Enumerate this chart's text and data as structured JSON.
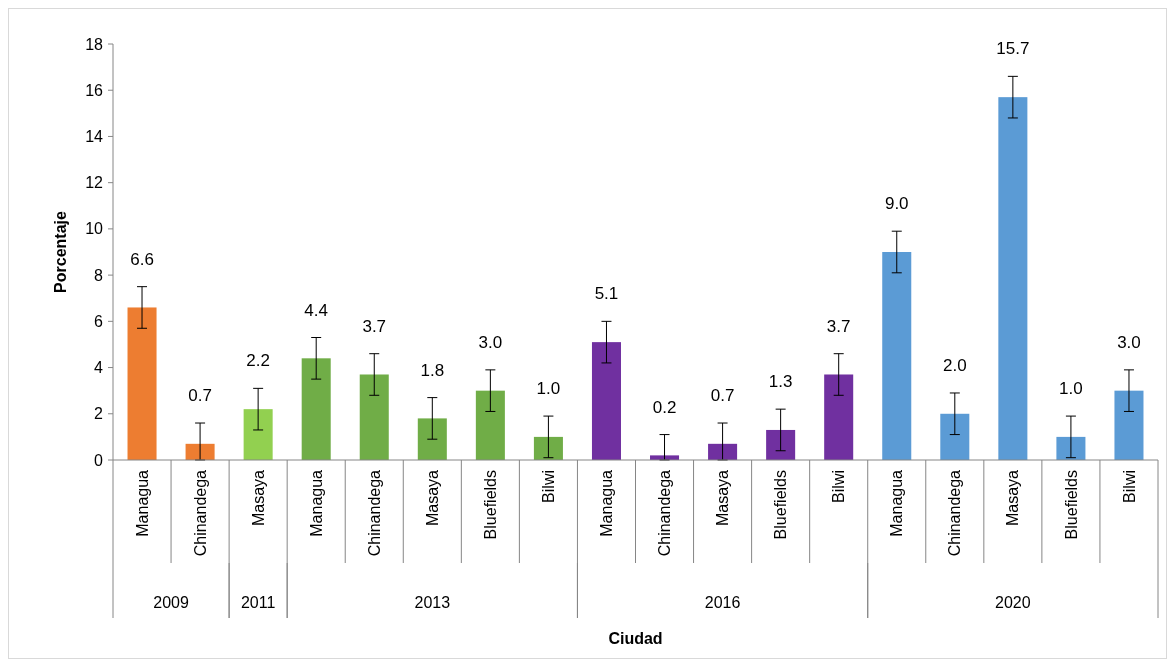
{
  "chart_data": {
    "type": "bar",
    "xlabel": "Ciudad",
    "ylabel": "Porcentaje",
    "categories": [
      "Managua",
      "Chinandega",
      "Masaya",
      "Managua",
      "Chinandega",
      "Masaya",
      "Bluefields",
      "Bilwi",
      "Managua",
      "Chinandega",
      "Masaya",
      "Bluefields",
      "Bilwi",
      "Managua",
      "Chinandega",
      "Masaya",
      "Bluefields",
      "Bilwi"
    ],
    "values": [
      6.6,
      0.7,
      2.2,
      4.4,
      3.7,
      1.8,
      3.0,
      1.0,
      5.1,
      0.2,
      0.7,
      1.3,
      3.7,
      9.0,
      2.0,
      15.7,
      1.0,
      3.0
    ],
    "value_labels": [
      "6.6",
      "0.7",
      "2.2",
      "4.4",
      "3.7",
      "1.8",
      "3.0",
      "1.0",
      "5.1",
      "0.2",
      "0.7",
      "1.3",
      "3.7",
      "9.0",
      "2.0",
      "15.7",
      "1.0",
      "3.0"
    ],
    "errors": [
      0.9,
      [
        0,
        1.6
      ],
      0.9,
      0.9,
      0.9,
      0.9,
      0.9,
      0.9,
      0.9,
      [
        0,
        1.1
      ],
      [
        0,
        1.6
      ],
      0.9,
      0.9,
      0.9,
      0.9,
      0.9,
      0.9,
      0.9
    ],
    "colors": [
      "#ed7d31",
      "#ed7d31",
      "#92d050",
      "#70ad47",
      "#70ad47",
      "#70ad47",
      "#70ad47",
      "#70ad47",
      "#7030a0",
      "#7030a0",
      "#7030a0",
      "#7030a0",
      "#7030a0",
      "#5b9bd5",
      "#5b9bd5",
      "#5b9bd5",
      "#5b9bd5",
      "#5b9bd5"
    ],
    "annotations": [
      "2009",
      "2011",
      "2013",
      "2016",
      "2020"
    ],
    "ylim": [
      0,
      18
    ],
    "yticks": [
      0,
      2,
      4,
      6,
      8,
      10,
      12,
      14,
      16,
      18
    ]
  }
}
